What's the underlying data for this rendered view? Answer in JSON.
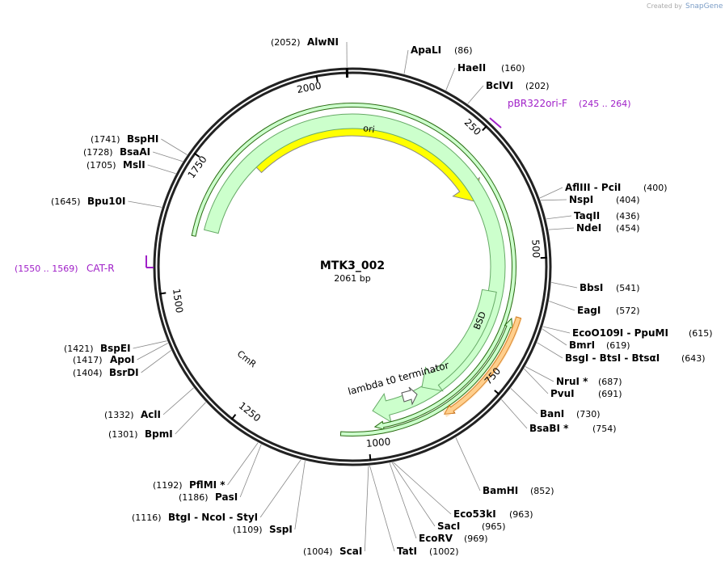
{
  "watermark": {
    "prefix": "Created by",
    "brand": "SnapGene"
  },
  "plasmid": {
    "name": "MTK3_002",
    "length": "2061 bp"
  },
  "ruler": [
    250,
    500,
    750,
    1000,
    1250,
    1500,
    1750,
    2000
  ],
  "features": [
    {
      "label": "ori"
    },
    {
      "label": "CmR"
    },
    {
      "label": "BSD"
    },
    {
      "label": "lambda t0 terminator"
    }
  ],
  "primers": [
    {
      "name": "pBR322ori-F",
      "range": "(245 .. 264)"
    },
    {
      "name": "CAT-R",
      "range": "(1550 .. 1569)"
    }
  ],
  "sites": [
    {
      "name": "AlwNI",
      "position": "(2052)"
    },
    {
      "name": "ApaLI",
      "position": "(86)"
    },
    {
      "name": "HaeII",
      "position": "(160)"
    },
    {
      "name": "BclVI",
      "position": "(202)"
    },
    {
      "name": "AflIII - PciI",
      "position": "(400)"
    },
    {
      "name": "NspI",
      "position": "(404)"
    },
    {
      "name": "TaqII",
      "position": "(436)"
    },
    {
      "name": "NdeI",
      "position": "(454)"
    },
    {
      "name": "BbsI",
      "position": "(541)"
    },
    {
      "name": "EagI",
      "position": "(572)"
    },
    {
      "name": "EcoO109I - PpuMI",
      "position": "(615)"
    },
    {
      "name": "BmrI",
      "position": "(619)"
    },
    {
      "name": "BsgI - BtsI - BtsαI",
      "position": "(643)"
    },
    {
      "name": "NruI *",
      "position": "(687)"
    },
    {
      "name": "PvuI",
      "position": "(691)"
    },
    {
      "name": "BanI",
      "position": "(730)"
    },
    {
      "name": "BsaBI *",
      "position": "(754)"
    },
    {
      "name": "BamHI",
      "position": "(852)"
    },
    {
      "name": "Eco53kI",
      "position": "(963)"
    },
    {
      "name": "SacI",
      "position": "(965)"
    },
    {
      "name": "EcoRV",
      "position": "(969)"
    },
    {
      "name": "TatI",
      "position": "(1002)"
    },
    {
      "name": "ScaI",
      "position": "(1004)"
    },
    {
      "name": "SspI",
      "position": "(1109)"
    },
    {
      "name": "BtgI - NcoI - StyI",
      "position": "(1116)"
    },
    {
      "name": "PasI",
      "position": "(1186)"
    },
    {
      "name": "PflMI *",
      "position": "(1192)"
    },
    {
      "name": "BpmI",
      "position": "(1301)"
    },
    {
      "name": "AclI",
      "position": "(1332)"
    },
    {
      "name": "BsrDI",
      "position": "(1404)"
    },
    {
      "name": "ApoI",
      "position": "(1417)"
    },
    {
      "name": "BspEI",
      "position": "(1421)"
    },
    {
      "name": "Bpu10I",
      "position": "(1645)"
    },
    {
      "name": "MslI",
      "position": "(1705)"
    },
    {
      "name": "BsaAI",
      "position": "(1728)"
    },
    {
      "name": "BspHI",
      "position": "(1741)"
    }
  ]
}
